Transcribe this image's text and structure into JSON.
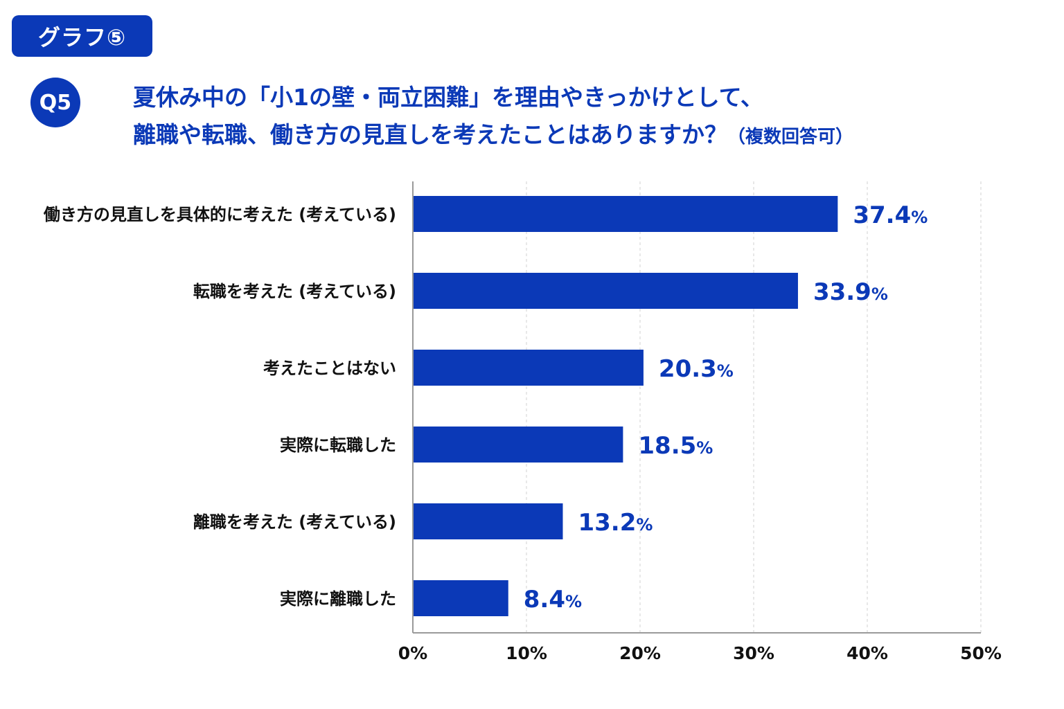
{
  "badge": {
    "label": "グラフ⑤"
  },
  "question": {
    "number": "Q5",
    "line1": "夏休み中の「小1の壁・両立困難」を理由やきっかけとして、",
    "line2": "離職や転職、働き方の見直しを考えたことはありますか？",
    "note": "（複数回答可）"
  },
  "colors": {
    "accent": "#0b39b7",
    "bar": "#0b39b7",
    "text": "#111111",
    "grid": "#d9d9d9"
  },
  "chart_data": {
    "type": "bar",
    "orientation": "horizontal",
    "categories": [
      "働き方の見直しを具体的に考えた (考えている)",
      "転職を考えた (考えている)",
      "考えたことはない",
      "実際に転職した",
      "離職を考えた (考えている)",
      "実際に離職した"
    ],
    "values": [
      37.4,
      33.9,
      20.3,
      18.5,
      13.2,
      8.4
    ],
    "value_labels": [
      "37.4",
      "33.9",
      "20.3",
      "18.5",
      "13.2",
      "8.4"
    ],
    "unit": "%",
    "xlim": [
      0,
      50
    ],
    "x_ticks": [
      0,
      10,
      20,
      30,
      40,
      50
    ],
    "x_tick_labels": [
      "0%",
      "10%",
      "20%",
      "30%",
      "40%",
      "50%"
    ],
    "grid": "vertical dashed",
    "legend": "none"
  }
}
